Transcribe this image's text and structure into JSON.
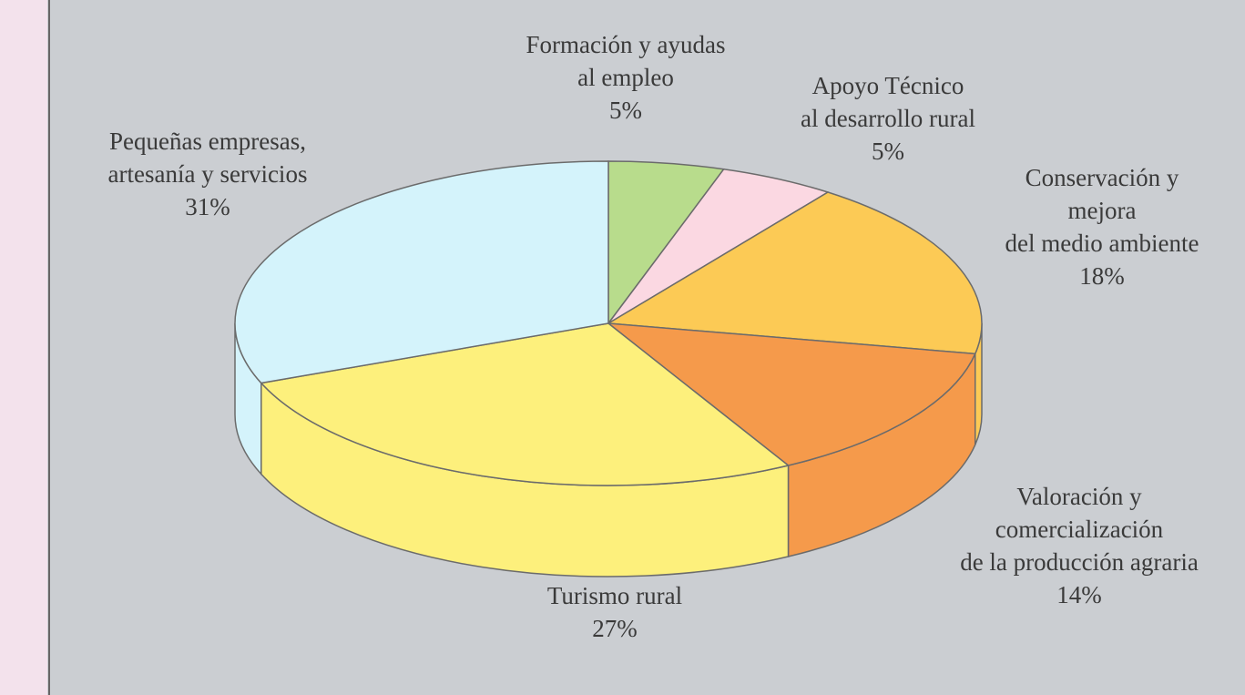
{
  "chart_data": {
    "type": "pie",
    "categories": [
      [
        "Formación y ayudas",
        "al empleo"
      ],
      [
        "Apoyo Técnico",
        "al desarrollo rural"
      ],
      [
        "Conservación y",
        "mejora",
        "del medio ambiente"
      ],
      [
        "Valoración y",
        "comercialización",
        "de la producción agraria"
      ],
      [
        "Turismo rural"
      ],
      [
        "Pequeñas  empresas,",
        "artesanía y servicios"
      ]
    ],
    "values": [
      5,
      5,
      18,
      14,
      27,
      31
    ],
    "value_labels": [
      "5%",
      "5%",
      "18%",
      "14%",
      "27%",
      "31%"
    ],
    "colors": [
      "#b8dc8c",
      "#fbd8e2",
      "#fcca55",
      "#f59a4b",
      "#fdf07c",
      "#d4f3fb"
    ]
  }
}
